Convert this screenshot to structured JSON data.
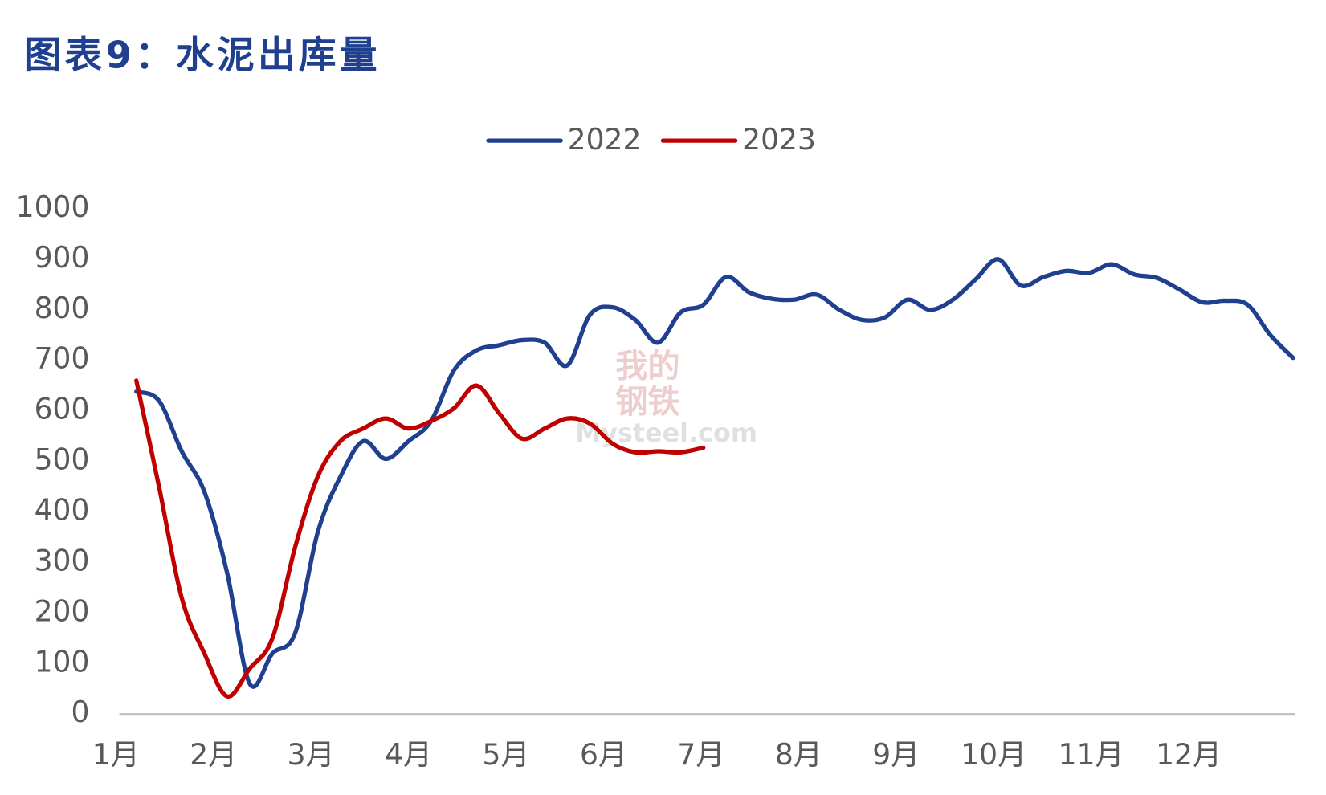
{
  "chart_data": {
    "type": "line",
    "title": "图表9：水泥出库量",
    "watermark": [
      "我的",
      "钢铁",
      "Mysteel.com"
    ],
    "x": [
      0,
      1,
      2,
      3,
      4,
      5,
      6,
      7,
      8,
      9,
      10,
      11,
      12,
      13,
      14,
      15,
      16,
      17,
      18,
      19,
      20,
      21,
      22,
      23,
      24,
      25,
      26,
      27,
      28,
      29,
      30,
      31,
      32,
      33,
      34,
      35,
      36,
      37,
      38,
      39,
      40,
      41,
      42,
      43,
      44,
      45,
      46,
      47,
      48,
      49,
      50,
      51
    ],
    "series": [
      {
        "name": "2022",
        "color": "#1f3f8f",
        "values": [
          638,
          620,
          520,
          440,
          280,
          60,
          120,
          160,
          360,
          470,
          540,
          505,
          540,
          580,
          680,
          720,
          730,
          740,
          735,
          690,
          790,
          805,
          780,
          735,
          795,
          810,
          865,
          835,
          822,
          820,
          830,
          800,
          780,
          785,
          820,
          800,
          820,
          860,
          900,
          848,
          865,
          877,
          873,
          890,
          870,
          863,
          840,
          815,
          818,
          810,
          750,
          705
        ]
      },
      {
        "name": "2023",
        "color": "#c00000",
        "values": [
          660,
          450,
          230,
          120,
          35,
          90,
          150,
          330,
          470,
          540,
          565,
          585,
          565,
          580,
          605,
          650,
          595,
          545,
          565,
          585,
          575,
          535,
          518,
          520,
          518,
          527,
          null,
          null,
          null,
          null,
          null,
          null,
          null,
          null,
          null,
          null,
          null,
          null,
          null,
          null,
          null,
          null,
          null,
          null,
          null,
          null,
          null,
          null,
          null,
          null,
          null,
          null
        ]
      }
    ],
    "xlim": [
      -0.75,
      51.1
    ],
    "xticks": [
      {
        "value": -0.9,
        "label": "1月"
      },
      {
        "value": 3.4,
        "label": "2月"
      },
      {
        "value": 7.7,
        "label": "3月"
      },
      {
        "value": 12.0,
        "label": "4月"
      },
      {
        "value": 16.3,
        "label": "5月"
      },
      {
        "value": 20.6,
        "label": "6月"
      },
      {
        "value": 24.9,
        "label": "7月"
      },
      {
        "value": 29.2,
        "label": "8月"
      },
      {
        "value": 33.5,
        "label": "9月"
      },
      {
        "value": 37.8,
        "label": "10月"
      },
      {
        "value": 42.1,
        "label": "11月"
      },
      {
        "value": 46.4,
        "label": "12月"
      }
    ],
    "ylim": [
      0,
      1000
    ],
    "yticks": [
      0,
      100,
      200,
      300,
      400,
      500,
      600,
      700,
      800,
      900,
      1000
    ],
    "legend": "top",
    "grid": false
  }
}
